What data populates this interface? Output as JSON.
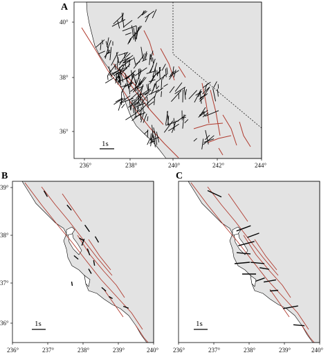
{
  "figure": {
    "panels": [
      {
        "id": "A",
        "letter": "A",
        "scale_label": "1s",
        "x_ticks": [
          "236°",
          "238°",
          "240°",
          "242°",
          "244°"
        ],
        "y_ticks": [
          "40°",
          "38°",
          "36°"
        ],
        "x_range_deg": [
          235.5,
          244
        ],
        "y_range_deg": [
          34.8,
          40.4
        ]
      },
      {
        "id": "B",
        "letter": "B",
        "scale_label": "1s",
        "x_ticks": [
          "236°",
          "237°",
          "238°",
          "239°",
          "240°"
        ],
        "y_ticks": [
          "39°",
          "38°",
          "37°",
          "36°"
        ],
        "x_range_deg": [
          236,
          240
        ],
        "y_range_deg": [
          35.5,
          39.2
        ]
      },
      {
        "id": "C",
        "letter": "C",
        "scale_label": "1s",
        "x_ticks": [
          "236°",
          "237°",
          "238°",
          "239°",
          "240°"
        ],
        "y_ticks": [],
        "x_range_deg": [
          236,
          240
        ],
        "y_range_deg": [
          35.5,
          39.2
        ]
      }
    ],
    "colors": {
      "land": "#e3e3e3",
      "ocean": "#ffffff",
      "fault": "#b03a2e",
      "split_bar": "#000000",
      "border": "#000000"
    }
  }
}
